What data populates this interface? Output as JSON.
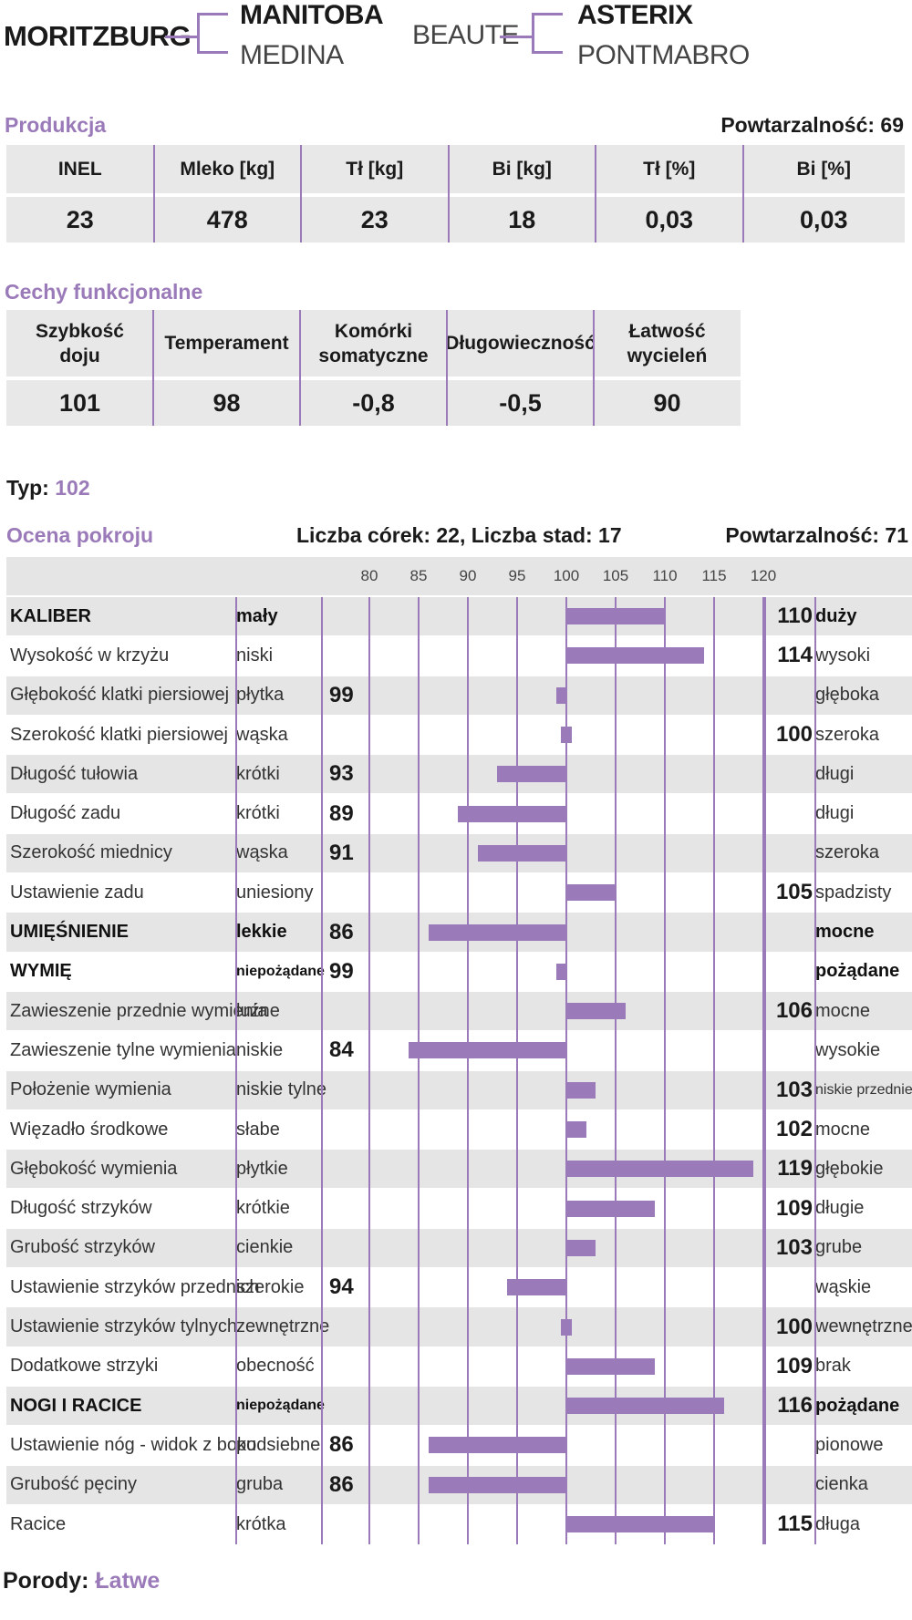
{
  "pedigree": {
    "bull": "MORITZBURG",
    "sire": "MANITOBA",
    "sire_dam": "MEDINA",
    "dam": "BEAUTE",
    "dam_sire": "ASTERIX",
    "dam_dam": "PONTMABRO"
  },
  "production": {
    "title": "Produkcja",
    "reliability_label": "Powtarzalność: 69",
    "headers": [
      "INEL",
      "Mleko [kg]",
      "Tł [kg]",
      "Bi [kg]",
      "Tł [%]",
      "Bi [%]"
    ],
    "values": [
      "23",
      "478",
      "23",
      "18",
      "0,03",
      "0,03"
    ]
  },
  "functional": {
    "title": "Cechy funkcjonalne",
    "headers": [
      "Szybkość\ndoju",
      "Temperament",
      "Komórki\nsomatyczne",
      "Długowieczność",
      "Łatwość\nwycieleń"
    ],
    "values": [
      "101",
      "98",
      "-0,8",
      "-0,5",
      "90"
    ]
  },
  "type": {
    "label": "Typ:",
    "value": "102"
  },
  "conformation": {
    "title": "Ocena pokroju",
    "daughters_label": "Liczba córek: 22, Liczba stad: 17",
    "reliability_label": "Powtarzalność: 71",
    "axis_ticks": [
      "80",
      "85",
      "90",
      "95",
      "100",
      "105",
      "110",
      "115",
      "120"
    ],
    "traits": [
      {
        "name": "KALIBER",
        "low": "mały",
        "high": "duży",
        "value": 110,
        "bold": true
      },
      {
        "name": "Wysokość w krzyżu",
        "low": "niski",
        "high": "wysoki",
        "value": 114,
        "bold": false
      },
      {
        "name": "Głębokość klatki piersiowej",
        "low": "płytka",
        "high": "głęboka",
        "value": 99,
        "bold": false
      },
      {
        "name": "Szerokość klatki piersiowej",
        "low": "wąska",
        "high": "szeroka",
        "value": 100,
        "bold": false
      },
      {
        "name": "Długość tułowia",
        "low": "krótki",
        "high": "długi",
        "value": 93,
        "bold": false
      },
      {
        "name": "Długość zadu",
        "low": "krótki",
        "high": "długi",
        "value": 89,
        "bold": false
      },
      {
        "name": "Szerokość miednicy",
        "low": "wąska",
        "high": "szeroka",
        "value": 91,
        "bold": false
      },
      {
        "name": "Ustawienie zadu",
        "low": "uniesiony",
        "high": "spadzisty",
        "value": 105,
        "bold": false
      },
      {
        "name": "UMIĘŚNIENIE",
        "low": "lekkie",
        "high": "mocne",
        "value": 86,
        "bold": true
      },
      {
        "name": "WYMIĘ",
        "low": "niepożądane",
        "high": "pożądane",
        "value": 99,
        "bold": true,
        "low_small": true
      },
      {
        "name": "Zawieszenie przednie wymienia",
        "low": "luźne",
        "high": "mocne",
        "value": 106,
        "bold": false
      },
      {
        "name": "Zawieszenie tylne wymienia",
        "low": "niskie",
        "high": "wysokie",
        "value": 84,
        "bold": false
      },
      {
        "name": "Położenie wymienia",
        "low": "niskie tylne",
        "high": "niskie przednie",
        "value": 103,
        "bold": false,
        "high_small": true
      },
      {
        "name": "Więzadło środkowe",
        "low": "słabe",
        "high": "mocne",
        "value": 102,
        "bold": false
      },
      {
        "name": "Głębokość wymienia",
        "low": "płytkie",
        "high": "głębokie",
        "value": 119,
        "bold": false
      },
      {
        "name": "Długość strzyków",
        "low": "krótkie",
        "high": "długie",
        "value": 109,
        "bold": false
      },
      {
        "name": "Grubość strzyków",
        "low": "cienkie",
        "high": "grube",
        "value": 103,
        "bold": false
      },
      {
        "name": "Ustawienie strzyków przednich",
        "low": "szerokie",
        "high": "wąskie",
        "value": 94,
        "bold": false
      },
      {
        "name": "Ustawienie strzyków tylnych",
        "low": "zewnętrzne",
        "high": "wewnętrzne",
        "value": 100,
        "bold": false
      },
      {
        "name": "Dodatkowe strzyki",
        "low": "obecność",
        "high": "brak",
        "value": 109,
        "bold": false
      },
      {
        "name": "NOGI I RACICE",
        "low": "niepożądane",
        "high": "pożądane",
        "value": 116,
        "bold": true,
        "low_small": true
      },
      {
        "name": "Ustawienie nóg - widok z boku",
        "low": "podsiebne",
        "high": "pionowe",
        "value": 86,
        "bold": false
      },
      {
        "name": "Grubość pęciny",
        "low": "gruba",
        "high": "cienka",
        "value": 86,
        "bold": false
      },
      {
        "name": "Racice",
        "low": "krótka",
        "high": "długa",
        "value": 115,
        "bold": false
      }
    ]
  },
  "calving": {
    "label": "Porody:",
    "value": "Łatwe"
  },
  "colors": {
    "accent": "#9a7ab8",
    "row_grey": "#e5e5e5"
  }
}
